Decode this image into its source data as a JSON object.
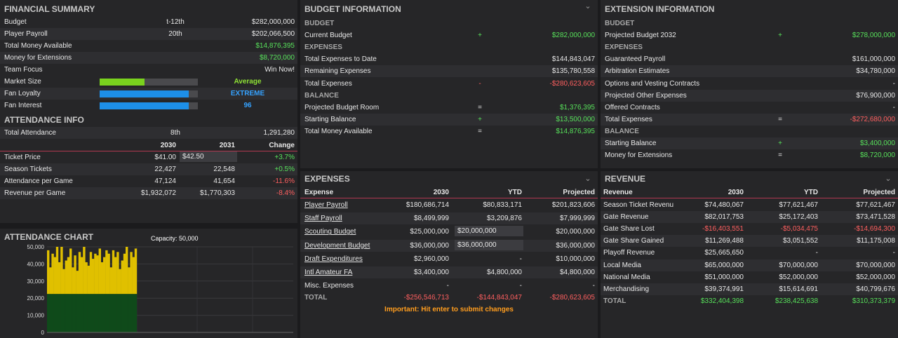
{
  "financial": {
    "title": "FINANCIAL SUMMARY",
    "rows": [
      {
        "label": "Budget",
        "mid": "t-12th",
        "value": "$282,000,000"
      },
      {
        "label": "Player Payroll",
        "mid": "20th",
        "value": "$202,066,500"
      },
      {
        "label": "Total Money Available",
        "mid": "",
        "value": "$14,876,395"
      },
      {
        "label": "Money for Extensions",
        "mid": "",
        "value": "$8,720,000"
      },
      {
        "label": "Team Focus",
        "mid": "",
        "value": "Win Now!"
      }
    ],
    "meters": [
      {
        "label": "Market Size",
        "value": "Average",
        "fill": 0.46,
        "color": "#7ad21e"
      },
      {
        "label": "Fan Loyalty",
        "value": "EXTREME",
        "fill": 0.91,
        "color": "#1d8fe8"
      },
      {
        "label": "Fan Interest",
        "value": "96",
        "fill": 0.91,
        "color": "#1d8fe8"
      }
    ]
  },
  "attendance": {
    "title": "ATTENDANCE INFO",
    "total_label": "Total Attendance",
    "total_rank": "8th",
    "total_value": "1,291,280",
    "headers": [
      "2030",
      "2031",
      "Change"
    ],
    "rows": [
      {
        "label": "Ticket Price",
        "a": "$41.00",
        "b": "$42.50",
        "change": "+3.7%"
      },
      {
        "label": "Season Tickets",
        "a": "22,427",
        "b": "22,548",
        "change": "+0.5%"
      },
      {
        "label": "Attendance per Game",
        "a": "47,124",
        "b": "41,654",
        "change": "-11.6%"
      },
      {
        "label": "Revenue per Game",
        "a": "$1,932,072",
        "b": "$1,770,303",
        "change": "-8.4%"
      }
    ]
  },
  "chart": {
    "title": "ATTENDANCE CHART",
    "capacity_label": "Capacity: 50,000",
    "chart_data": {
      "type": "bar",
      "ylim": [
        0,
        50000
      ],
      "yticks": [
        "50,000",
        "40,000",
        "30,000",
        "20,000",
        "10,000",
        "0"
      ],
      "season_tickets": 22427,
      "values": [
        48000,
        38000,
        46000,
        44000,
        50000,
        41000,
        50000,
        37000,
        42000,
        44000,
        49000,
        38000,
        45000,
        36000,
        47000,
        44000,
        50000,
        41000,
        39000,
        47000,
        43000,
        46000,
        45000,
        49000,
        41000,
        44000,
        48000,
        46000,
        38000,
        48000,
        44000,
        47000,
        37000,
        42000,
        46000,
        50000,
        38000,
        47000,
        44000,
        49000
      ]
    }
  },
  "budget": {
    "title": "BUDGET INFORMATION",
    "rows": [
      {
        "type": "sub",
        "label": "BUDGET"
      },
      {
        "label": "Current Budget",
        "op": "+",
        "value": "$282,000,000",
        "color": "green"
      },
      {
        "type": "sub",
        "label": "EXPENSES"
      },
      {
        "label": "Total Expenses to Date",
        "op": "",
        "value": "$144,843,047",
        "color": ""
      },
      {
        "label": "Remaining Expenses",
        "op": "",
        "value": "$135,780,558",
        "color": ""
      },
      {
        "label": "Total Expenses",
        "op": "-",
        "value": "-$280,623,605",
        "color": "red"
      },
      {
        "type": "sub",
        "label": "BALANCE"
      },
      {
        "label": "Projected Budget Room",
        "op": "=",
        "value": "$1,376,395",
        "color": "green"
      },
      {
        "label": "Starting Balance",
        "op": "+",
        "value": "$13,500,000",
        "color": "green"
      },
      {
        "label": "Total Money Available",
        "op": "=",
        "value": "$14,876,395",
        "color": "green"
      }
    ]
  },
  "extension": {
    "title": "EXTENSION INFORMATION",
    "rows": [
      {
        "type": "sub",
        "label": "BUDGET"
      },
      {
        "label": "Projected Budget 2032",
        "op": "+",
        "value": "$278,000,000",
        "color": "green"
      },
      {
        "type": "sub",
        "label": "EXPENSES"
      },
      {
        "label": "Guaranteed Payroll",
        "op": "",
        "value": "$161,000,000",
        "color": ""
      },
      {
        "label": "Arbitration Estimates",
        "op": "",
        "value": "$34,780,000",
        "color": ""
      },
      {
        "label": "Options and Vesting Contracts",
        "op": "",
        "value": "-",
        "color": ""
      },
      {
        "label": "Projected Other Expenses",
        "op": "",
        "value": "$76,900,000",
        "color": ""
      },
      {
        "label": "Offered Contracts",
        "op": "",
        "value": "-",
        "color": ""
      },
      {
        "label": "Total Expenses",
        "op": "=",
        "value": "-$272,680,000",
        "color": "red"
      },
      {
        "type": "sub",
        "label": "BALANCE"
      },
      {
        "label": "Starting Balance",
        "op": "+",
        "value": "$3,400,000",
        "color": "green"
      },
      {
        "label": "Money for Extensions",
        "op": "=",
        "value": "$8,720,000",
        "color": "green"
      }
    ]
  },
  "expenses": {
    "title": "EXPENSES",
    "headers": [
      "Expense",
      "2030",
      "YTD",
      "Projected"
    ],
    "rows": [
      {
        "label": "Player Payroll",
        "link": true,
        "a": "$180,686,714",
        "ytd": "$80,833,171",
        "proj": "$201,823,606",
        "input": false
      },
      {
        "label": "Staff Payroll",
        "link": true,
        "a": "$8,499,999",
        "ytd": "$3,209,876",
        "proj": "$7,999,999",
        "input": false
      },
      {
        "label": "Scouting Budget",
        "link": true,
        "a": "$25,000,000",
        "ytd": "$20,000,000",
        "proj": "$20,000,000",
        "input": true
      },
      {
        "label": "Development Budget",
        "link": true,
        "a": "$36,000,000",
        "ytd": "$36,000,000",
        "proj": "$36,000,000",
        "input": true
      },
      {
        "label": "Draft Expenditures",
        "link": true,
        "a": "$2,960,000",
        "ytd": "-",
        "proj": "$10,000,000",
        "input": false
      },
      {
        "label": "Intl Amateur FA",
        "link": true,
        "a": "$3,400,000",
        "ytd": "$4,800,000",
        "proj": "$4,800,000",
        "input": false
      },
      {
        "label": "Misc. Expenses",
        "link": false,
        "a": "-",
        "ytd": "-",
        "proj": "-",
        "input": false
      }
    ],
    "total": {
      "label": "TOTAL",
      "a": "-$256,546,713",
      "ytd": "-$144,843,047",
      "proj": "-$280,623,605"
    },
    "note": "Important: Hit enter to submit changes"
  },
  "revenue": {
    "title": "REVENUE",
    "headers": [
      "Revenue",
      "2030",
      "YTD",
      "Projected"
    ],
    "rows": [
      {
        "label": "Season Ticket Revenu",
        "a": "$74,480,067",
        "ytd": "$77,621,467",
        "proj": "$77,621,467",
        "neg": false
      },
      {
        "label": "Gate Revenue",
        "a": "$82,017,753",
        "ytd": "$25,172,403",
        "proj": "$73,471,528",
        "neg": false
      },
      {
        "label": "Gate Share Lost",
        "a": "-$16,403,551",
        "ytd": "-$5,034,475",
        "proj": "-$14,694,300",
        "neg": true
      },
      {
        "label": "Gate Share Gained",
        "a": "$11,269,488",
        "ytd": "$3,051,552",
        "proj": "$11,175,008",
        "neg": false
      },
      {
        "label": "Playoff Revenue",
        "a": "$25,665,650",
        "ytd": "-",
        "proj": "-",
        "neg": false
      },
      {
        "label": "Local Media",
        "a": "$65,000,000",
        "ytd": "$70,000,000",
        "proj": "$70,000,000",
        "neg": false
      },
      {
        "label": "National Media",
        "a": "$51,000,000",
        "ytd": "$52,000,000",
        "proj": "$52,000,000",
        "neg": false
      },
      {
        "label": "Merchandising",
        "a": "$39,374,991",
        "ytd": "$15,614,691",
        "proj": "$40,799,676",
        "neg": false
      }
    ],
    "total": {
      "label": "TOTAL",
      "a": "$332,404,398",
      "ytd": "$238,425,638",
      "proj": "$310,373,379"
    }
  }
}
